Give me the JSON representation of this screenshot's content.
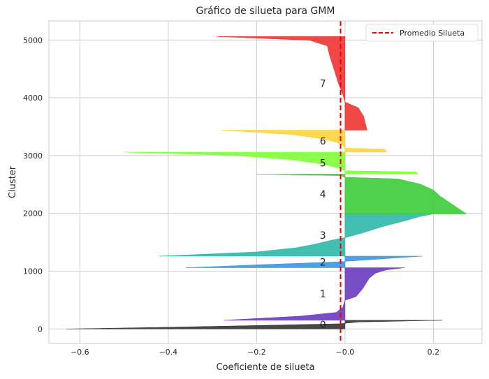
{
  "chart_data": {
    "type": "area",
    "title": "Gráfico de silueta para GMM",
    "xlabel": "Coeficiente de silueta",
    "ylabel": "Cluster",
    "xlim": [
      -0.67,
      0.31
    ],
    "ylim": [
      -250,
      5330
    ],
    "xticks": [
      -0.6,
      -0.4,
      -0.2,
      -0.0,
      0.2
    ],
    "xtick_labels": [
      "−0.6",
      "−0.4",
      "−0.2",
      "−0.0",
      "0.2"
    ],
    "yticks": [
      0,
      1000,
      2000,
      3000,
      4000,
      5000
    ],
    "ytick_labels": [
      "0",
      "1000",
      "2000",
      "3000",
      "4000",
      "5000"
    ],
    "grid": true,
    "mean_line": {
      "x": -0.01,
      "color": "#ee0000",
      "label": "Promedio Silueta"
    },
    "legend_position": "top-right",
    "clusters": [
      {
        "label": "0",
        "color": "#333333",
        "y_start": 0,
        "y_end": 150,
        "profile": [
          [
            0,
            0.22
          ],
          [
            0.2,
            0.03
          ],
          [
            0.4,
            -0.01
          ],
          [
            0.6,
            -0.2
          ],
          [
            0.8,
            -0.4
          ],
          [
            1,
            -0.63
          ]
        ]
      },
      {
        "label": "1",
        "color": "#6a3bbf",
        "y_start": 150,
        "y_end": 1060,
        "profile": [
          [
            0,
            0.135
          ],
          [
            0.04,
            0.095
          ],
          [
            0.1,
            0.07
          ],
          [
            0.2,
            0.055
          ],
          [
            0.4,
            0.04
          ],
          [
            0.55,
            0.025
          ],
          [
            0.62,
            0.0
          ],
          [
            0.75,
            -0.005
          ],
          [
            0.85,
            -0.02
          ],
          [
            0.92,
            -0.1
          ],
          [
            1,
            -0.275
          ]
        ]
      },
      {
        "label": "2",
        "color": "#3a96e0",
        "y_start": 1060,
        "y_end": 1260,
        "profile": [
          [
            0,
            0.175
          ],
          [
            0.25,
            0.08
          ],
          [
            0.5,
            -0.02
          ],
          [
            0.75,
            -0.2
          ],
          [
            1,
            -0.36
          ]
        ]
      },
      {
        "label": "3",
        "color": "#2fb8a8",
        "y_start": 1260,
        "y_end": 1990,
        "profile": [
          [
            0,
            0.2
          ],
          [
            0.06,
            0.17
          ],
          [
            0.15,
            0.14
          ],
          [
            0.3,
            0.085
          ],
          [
            0.45,
            0.04
          ],
          [
            0.55,
            0.005
          ],
          [
            0.62,
            -0.03
          ],
          [
            0.72,
            -0.07
          ],
          [
            0.8,
            -0.11
          ],
          [
            0.9,
            -0.2
          ],
          [
            1,
            -0.42
          ]
        ]
      },
      {
        "label": "4",
        "color": "#3ccc3a",
        "y_start": 1990,
        "y_end": 2680,
        "profile": [
          [
            0,
            -0.2
          ],
          [
            0.04,
            -0.01
          ],
          [
            0.08,
            0.0
          ],
          [
            0.12,
            0.12
          ],
          [
            0.25,
            0.17
          ],
          [
            0.4,
            0.2
          ],
          [
            0.55,
            0.215
          ],
          [
            0.7,
            0.235
          ],
          [
            0.85,
            0.255
          ],
          [
            1,
            0.275
          ]
        ]
      },
      {
        "label": "5",
        "color": "#7fff3a",
        "y_start": 2680,
        "y_end": 3060,
        "profile": [
          [
            0,
            -0.5
          ],
          [
            0.15,
            -0.25
          ],
          [
            0.35,
            -0.12
          ],
          [
            0.55,
            -0.05
          ],
          [
            0.7,
            -0.02
          ],
          [
            0.85,
            0.0
          ],
          [
            0.9,
            0.16
          ],
          [
            1,
            0.165
          ]
        ]
      },
      {
        "label": "6",
        "color": "#ffd43a",
        "y_start": 3060,
        "y_end": 3440,
        "profile": [
          [
            0,
            -0.28
          ],
          [
            0.2,
            -0.12
          ],
          [
            0.4,
            -0.05
          ],
          [
            0.55,
            -0.02
          ],
          [
            0.7,
            -0.005
          ],
          [
            0.82,
            0.0
          ],
          [
            0.86,
            0.09
          ],
          [
            1,
            0.095
          ]
        ]
      },
      {
        "label": "7",
        "color": "#ee3333",
        "y_start": 3440,
        "y_end": 5060,
        "profile": [
          [
            0,
            -0.29
          ],
          [
            0.04,
            -0.08
          ],
          [
            0.1,
            -0.04
          ],
          [
            0.2,
            -0.035
          ],
          [
            0.35,
            -0.025
          ],
          [
            0.5,
            -0.015
          ],
          [
            0.62,
            -0.005
          ],
          [
            0.7,
            0.0
          ],
          [
            0.76,
            0.03
          ],
          [
            0.85,
            0.042
          ],
          [
            1,
            0.05
          ]
        ]
      }
    ]
  }
}
